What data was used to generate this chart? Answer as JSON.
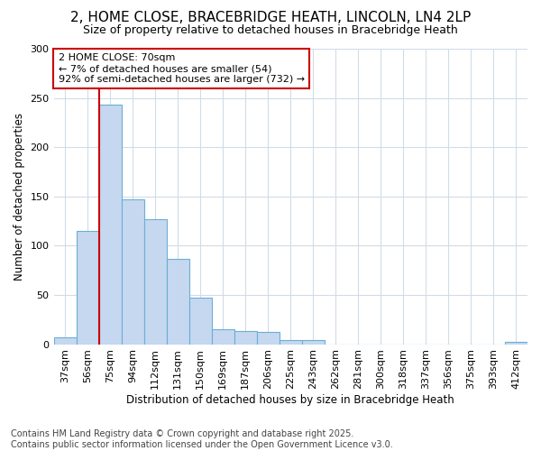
{
  "title_line1": "2, HOME CLOSE, BRACEBRIDGE HEATH, LINCOLN, LN4 2LP",
  "title_line2": "Size of property relative to detached houses in Bracebridge Heath",
  "xlabel": "Distribution of detached houses by size in Bracebridge Heath",
  "ylabel": "Number of detached properties",
  "categories": [
    "37sqm",
    "56sqm",
    "75sqm",
    "94sqm",
    "112sqm",
    "131sqm",
    "150sqm",
    "169sqm",
    "187sqm",
    "206sqm",
    "225sqm",
    "243sqm",
    "262sqm",
    "281sqm",
    "300sqm",
    "318sqm",
    "337sqm",
    "356sqm",
    "375sqm",
    "393sqm",
    "412sqm"
  ],
  "values": [
    7,
    115,
    243,
    147,
    127,
    87,
    47,
    15,
    13,
    12,
    4,
    4,
    0,
    0,
    0,
    0,
    0,
    0,
    0,
    0,
    2
  ],
  "bar_color": "#c5d8f0",
  "bar_edge_color": "#6baed6",
  "bg_color": "#ffffff",
  "grid_color": "#d0dce8",
  "vline_color": "#cc0000",
  "annotation_text": "2 HOME CLOSE: 70sqm\n← 7% of detached houses are smaller (54)\n92% of semi-detached houses are larger (732) →",
  "annotation_box_color": "#cc0000",
  "ylim": [
    0,
    300
  ],
  "yticks": [
    0,
    50,
    100,
    150,
    200,
    250,
    300
  ],
  "footer": "Contains HM Land Registry data © Crown copyright and database right 2025.\nContains public sector information licensed under the Open Government Licence v3.0.",
  "title1_fontsize": 11,
  "title2_fontsize": 9,
  "axis_label_fontsize": 8.5,
  "tick_fontsize": 8,
  "annot_fontsize": 8,
  "footer_fontsize": 7
}
